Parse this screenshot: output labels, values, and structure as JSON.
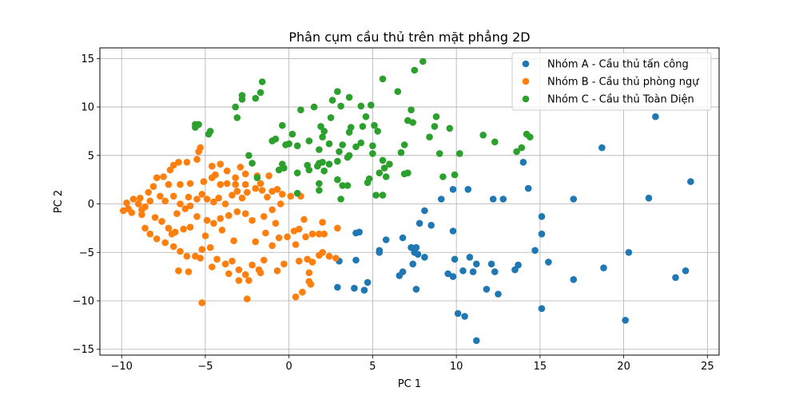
{
  "chart_data": {
    "type": "scatter",
    "title": "Phân cụm cầu thủ trên mặt phẳng 2D",
    "xlabel": "PC 1",
    "ylabel": "PC 2",
    "xlim": [
      -11.3,
      25.7
    ],
    "ylim": [
      -15.6,
      16.1
    ],
    "xticks": [
      -10,
      -5,
      0,
      5,
      10,
      15,
      20,
      25
    ],
    "yticks": [
      -15,
      -10,
      -5,
      0,
      5,
      10,
      15
    ],
    "grid": true,
    "legend_position": "top-right",
    "series": [
      {
        "name": "Nhóm A - Cầu thủ tấn công",
        "color": "#1f77b4",
        "points": [
          [
            21.9,
            9.0
          ],
          [
            18.7,
            5.8
          ],
          [
            24.0,
            2.3
          ],
          [
            14.0,
            4.3
          ],
          [
            14.3,
            1.6
          ],
          [
            12.2,
            0.5
          ],
          [
            12.8,
            0.5
          ],
          [
            17.0,
            0.5
          ],
          [
            21.5,
            0.6
          ],
          [
            9.8,
            1.5
          ],
          [
            10.7,
            1.5
          ],
          [
            9.1,
            0.5
          ],
          [
            15.1,
            -1.3
          ],
          [
            15.1,
            -3.1
          ],
          [
            8.1,
            -0.7
          ],
          [
            7.8,
            -2.0
          ],
          [
            8.5,
            -2.2
          ],
          [
            9.8,
            -2.8
          ],
          [
            6.8,
            -3.5
          ],
          [
            4.2,
            -2.9
          ],
          [
            4.0,
            -3.0
          ],
          [
            5.8,
            -3.7
          ],
          [
            5.4,
            -4.8
          ],
          [
            7.3,
            -4.5
          ],
          [
            7.6,
            -4.5
          ],
          [
            7.7,
            -5.2
          ],
          [
            8.1,
            -5.5
          ],
          [
            7.4,
            -6.2
          ],
          [
            7.5,
            -5.0
          ],
          [
            14.7,
            -4.8
          ],
          [
            13.7,
            -6.3
          ],
          [
            15.5,
            -6.0
          ],
          [
            20.3,
            -5.0
          ],
          [
            10.8,
            -5.5
          ],
          [
            11.2,
            -6.2
          ],
          [
            12.1,
            -6.2
          ],
          [
            9.9,
            -5.7
          ],
          [
            10.4,
            -6.9
          ],
          [
            9.5,
            -7.2
          ],
          [
            9.8,
            -7.5
          ],
          [
            11.0,
            -7.0
          ],
          [
            12.3,
            -7.0
          ],
          [
            13.5,
            -6.8
          ],
          [
            17.0,
            -7.8
          ],
          [
            18.8,
            -6.6
          ],
          [
            23.1,
            -7.6
          ],
          [
            23.7,
            -6.9
          ],
          [
            3.0,
            -5.9
          ],
          [
            4.0,
            -5.8
          ],
          [
            5.4,
            -5.0
          ],
          [
            6.6,
            -7.4
          ],
          [
            6.8,
            -7.0
          ],
          [
            7.6,
            -8.8
          ],
          [
            4.5,
            -8.9
          ],
          [
            4.7,
            -8.1
          ],
          [
            3.9,
            -8.7
          ],
          [
            2.9,
            -8.6
          ],
          [
            11.8,
            -8.8
          ],
          [
            12.5,
            -9.3
          ],
          [
            15.1,
            -10.8
          ],
          [
            10.1,
            -11.3
          ],
          [
            10.5,
            -11.6
          ],
          [
            11.2,
            -14.1
          ],
          [
            20.1,
            -12.0
          ]
        ]
      },
      {
        "name": "Nhóm B - Cầu thủ phòng ngự",
        "color": "#ff7f0e",
        "points": [
          [
            -5.3,
            5.8
          ],
          [
            -5.4,
            5.4
          ],
          [
            -5.5,
            4.6
          ],
          [
            -6.1,
            4.3
          ],
          [
            -6.6,
            4.3
          ],
          [
            -6.9,
            4.0
          ],
          [
            -7.1,
            3.5
          ],
          [
            -7.5,
            2.8
          ],
          [
            -7.9,
            2.7
          ],
          [
            -4.1,
            4.1
          ],
          [
            -4.6,
            3.9
          ],
          [
            -2.9,
            3.8
          ],
          [
            -2.2,
            4.2
          ],
          [
            -2.6,
            3.1
          ],
          [
            -3.7,
            3.4
          ],
          [
            -4.4,
            3.0
          ],
          [
            -4.6,
            2.7
          ],
          [
            -3.2,
            2.7
          ],
          [
            -1.9,
            2.9
          ],
          [
            -1.2,
            2.9
          ],
          [
            -1.7,
            2.1
          ],
          [
            -2.6,
            2.0
          ],
          [
            -3.2,
            2.0
          ],
          [
            -3.7,
            2.1
          ],
          [
            -4.1,
            2.0
          ],
          [
            -5.1,
            2.3
          ],
          [
            -5.9,
            2.1
          ],
          [
            -6.5,
            2.0
          ],
          [
            -7.2,
            2.0
          ],
          [
            -8.1,
            1.8
          ],
          [
            -8.4,
            1.2
          ],
          [
            -8.9,
            0.6
          ],
          [
            -9.3,
            0.5
          ],
          [
            -9.0,
            0.0
          ],
          [
            -9.6,
            -0.5
          ],
          [
            -9.9,
            -0.7
          ],
          [
            -9.4,
            -0.9
          ],
          [
            -8.8,
            -1.1
          ],
          [
            -8.6,
            -0.3
          ],
          [
            -8.3,
            0.3
          ],
          [
            -7.7,
            0.8
          ],
          [
            -7.4,
            0.3
          ],
          [
            -6.9,
            0.8
          ],
          [
            -6.5,
            0.0
          ],
          [
            -6.2,
            -0.5
          ],
          [
            -6.0,
            0.7
          ],
          [
            -5.9,
            -0.2
          ],
          [
            -5.5,
            0.5
          ],
          [
            -5.2,
            1.0
          ],
          [
            -4.9,
            0.5
          ],
          [
            -4.5,
            0.2
          ],
          [
            -4.2,
            0.6
          ],
          [
            -3.8,
            0.0
          ],
          [
            -3.4,
            0.9
          ],
          [
            -3.1,
            1.3
          ],
          [
            -2.8,
            0.6
          ],
          [
            -2.5,
            1.2
          ],
          [
            -2.0,
            1.6
          ],
          [
            -1.6,
            1.4
          ],
          [
            -1.3,
            0.7
          ],
          [
            -1.0,
            1.3
          ],
          [
            -0.7,
            1.5
          ],
          [
            -0.4,
            1.0
          ],
          [
            0.1,
            0.8
          ],
          [
            0.7,
            0.8
          ],
          [
            -0.5,
            0.0
          ],
          [
            -1.0,
            -0.6
          ],
          [
            -1.5,
            -1.3
          ],
          [
            -2.2,
            -1.7
          ],
          [
            -2.6,
            -1.0
          ],
          [
            -3.1,
            -0.8
          ],
          [
            -3.6,
            -1.2
          ],
          [
            -4.1,
            -1.5
          ],
          [
            -4.5,
            -2.0
          ],
          [
            -4.9,
            -1.7
          ],
          [
            -5.5,
            -1.3
          ],
          [
            -5.9,
            -2.4
          ],
          [
            -6.3,
            -2.6
          ],
          [
            -6.8,
            -2.9
          ],
          [
            -7.2,
            -2.5
          ],
          [
            -7.6,
            -1.8
          ],
          [
            -8.0,
            -1.4
          ],
          [
            -8.6,
            -2.5
          ],
          [
            -8.3,
            -3.1
          ],
          [
            -7.9,
            -3.6
          ],
          [
            -7.4,
            -4.0
          ],
          [
            -6.9,
            -4.4
          ],
          [
            -6.5,
            -4.9
          ],
          [
            -6.1,
            -5.4
          ],
          [
            -5.6,
            -5.4
          ],
          [
            -5.2,
            -4.7
          ],
          [
            -4.7,
            -4.5
          ],
          [
            -4.3,
            -5.7
          ],
          [
            -3.8,
            -6.2
          ],
          [
            -3.4,
            -5.9
          ],
          [
            -3.0,
            -6.8
          ],
          [
            -2.6,
            -7.3
          ],
          [
            -2.2,
            -6.3
          ],
          [
            -1.8,
            -6.8
          ],
          [
            -1.5,
            -5.8
          ],
          [
            -1.0,
            -4.3
          ],
          [
            -0.6,
            -3.5
          ],
          [
            -0.1,
            -3.4
          ],
          [
            0.3,
            -2.8
          ],
          [
            0.6,
            -2.6
          ],
          [
            1.0,
            -3.4
          ],
          [
            1.4,
            -3.1
          ],
          [
            1.8,
            -3.1
          ],
          [
            2.1,
            -3.1
          ],
          [
            2.0,
            -1.9
          ],
          [
            2.9,
            -2.5
          ],
          [
            2.0,
            -5.0
          ],
          [
            1.8,
            -5.3
          ],
          [
            2.4,
            -5.4
          ],
          [
            2.8,
            -5.6
          ],
          [
            1.1,
            -5.7
          ],
          [
            1.4,
            -6.0
          ],
          [
            1.2,
            -7.1
          ],
          [
            0.6,
            -5.9
          ],
          [
            0.4,
            -4.2
          ],
          [
            -0.3,
            -6.2
          ],
          [
            -0.7,
            -6.9
          ],
          [
            -1.7,
            -7.1
          ],
          [
            -2.4,
            -7.9
          ],
          [
            -3.0,
            -7.9
          ],
          [
            -3.6,
            -7.2
          ],
          [
            -4.6,
            -6.5
          ],
          [
            -5.3,
            -5.6
          ],
          [
            -6.0,
            -7.0
          ],
          [
            -6.6,
            -6.9
          ],
          [
            1.2,
            -8.0
          ],
          [
            1.3,
            -8.3
          ],
          [
            0.8,
            -9.1
          ],
          [
            0.4,
            -9.6
          ],
          [
            -2.5,
            -9.8
          ],
          [
            -5.2,
            -10.2
          ],
          [
            -7.0,
            -3.1
          ],
          [
            -6.7,
            -1.0
          ],
          [
            -4.0,
            -2.7
          ],
          [
            -3.3,
            -3.8
          ],
          [
            -2.0,
            -3.9
          ],
          [
            -0.8,
            -2.0
          ],
          [
            0.9,
            -1.6
          ],
          [
            -1.4,
            -3.0
          ],
          [
            -5.0,
            -3.3
          ],
          [
            -8.8,
            -0.6
          ],
          [
            -9.7,
            0.1
          ]
        ]
      },
      {
        "name": "Nhóm C - Cầu thủ Toàn Diện",
        "color": "#2ca02c",
        "points": [
          [
            8.0,
            14.7
          ],
          [
            7.5,
            13.8
          ],
          [
            5.6,
            12.9
          ],
          [
            6.5,
            11.6
          ],
          [
            -1.6,
            12.6
          ],
          [
            -2.8,
            11.2
          ],
          [
            -2.8,
            10.8
          ],
          [
            -2.0,
            10.9
          ],
          [
            -1.7,
            11.5
          ],
          [
            -3.2,
            10.0
          ],
          [
            -3.1,
            8.9
          ],
          [
            -5.6,
            8.2
          ],
          [
            -5.4,
            8.2
          ],
          [
            -5.6,
            7.9
          ],
          [
            -4.7,
            7.5
          ],
          [
            -4.8,
            7.2
          ],
          [
            -1.0,
            6.5
          ],
          [
            -0.8,
            6.7
          ],
          [
            -0.2,
            6.1
          ],
          [
            0.0,
            6.2
          ],
          [
            0.5,
            6.0
          ],
          [
            1.2,
            6.5
          ],
          [
            1.8,
            5.6
          ],
          [
            2.0,
            6.9
          ],
          [
            2.1,
            7.5
          ],
          [
            2.4,
            6.2
          ],
          [
            3.0,
            5.4
          ],
          [
            3.2,
            6.1
          ],
          [
            3.6,
            5.0
          ],
          [
            4.0,
            5.9
          ],
          [
            4.3,
            6.3
          ],
          [
            3.6,
            7.4
          ],
          [
            3.7,
            7.9
          ],
          [
            4.4,
            8.0
          ],
          [
            4.6,
            9.0
          ],
          [
            5.1,
            8.1
          ],
          [
            5.3,
            7.5
          ],
          [
            5.0,
            6.0
          ],
          [
            5.0,
            5.2
          ],
          [
            5.6,
            4.5
          ],
          [
            6.0,
            4.1
          ],
          [
            6.7,
            5.3
          ],
          [
            6.9,
            6.1
          ],
          [
            7.1,
            8.6
          ],
          [
            7.3,
            9.7
          ],
          [
            7.4,
            8.4
          ],
          [
            8.4,
            6.9
          ],
          [
            8.8,
            9.0
          ],
          [
            8.7,
            8.0
          ],
          [
            9.6,
            7.8
          ],
          [
            9.0,
            5.2
          ],
          [
            10.2,
            5.2
          ],
          [
            11.6,
            7.1
          ],
          [
            12.3,
            6.4
          ],
          [
            13.6,
            5.4
          ],
          [
            13.9,
            5.8
          ],
          [
            14.2,
            7.2
          ],
          [
            14.4,
            6.9
          ],
          [
            9.2,
            2.8
          ],
          [
            9.9,
            3.0
          ],
          [
            5.7,
            3.7
          ],
          [
            5.4,
            3.2
          ],
          [
            5.8,
            2.8
          ],
          [
            6.9,
            3.1
          ],
          [
            7.1,
            3.2
          ],
          [
            4.8,
            2.6
          ],
          [
            4.7,
            2.2
          ],
          [
            3.5,
            1.9
          ],
          [
            3.2,
            1.9
          ],
          [
            2.9,
            2.5
          ],
          [
            2.1,
            3.4
          ],
          [
            1.7,
            3.9
          ],
          [
            1.8,
            4.2
          ],
          [
            2.0,
            4.3
          ],
          [
            2.4,
            4.1
          ],
          [
            2.9,
            4.4
          ],
          [
            3.5,
            4.8
          ],
          [
            1.2,
            3.5
          ],
          [
            1.1,
            4.0
          ],
          [
            0.5,
            3.2
          ],
          [
            -0.3,
            3.7
          ],
          [
            -0.4,
            4.1
          ],
          [
            -0.6,
            3.5
          ],
          [
            -2.2,
            4.2
          ],
          [
            -2.4,
            5.0
          ],
          [
            -1.9,
            2.7
          ],
          [
            0.5,
            1.1
          ],
          [
            1.8,
            2.1
          ],
          [
            1.8,
            1.4
          ],
          [
            3.1,
            0.5
          ],
          [
            5.6,
            0.9
          ],
          [
            5.2,
            0.9
          ],
          [
            2.5,
            8.9
          ],
          [
            1.5,
            10.0
          ],
          [
            3.1,
            10.1
          ],
          [
            3.6,
            11.0
          ],
          [
            2.6,
            10.7
          ],
          [
            0.7,
            9.7
          ],
          [
            -0.4,
            8.1
          ],
          [
            0.2,
            7.2
          ],
          [
            4.3,
            10.1
          ],
          [
            4.9,
            10.2
          ],
          [
            2.9,
            11.6
          ],
          [
            1.9,
            8.0
          ]
        ]
      }
    ]
  }
}
